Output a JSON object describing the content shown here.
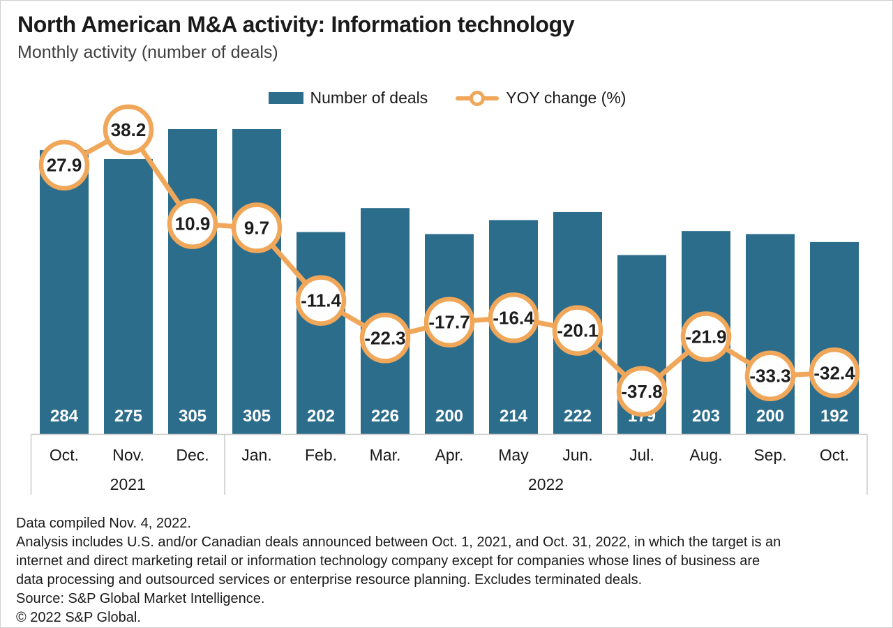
{
  "chart_data": {
    "type": "bar",
    "title": "North American M&A activity: Information technology",
    "subtitle": "Monthly activity (number of deals)",
    "categories": [
      "Oct.",
      "Nov.",
      "Dec.",
      "Jan.",
      "Feb.",
      "Mar.",
      "Apr.",
      "May",
      "Jun.",
      "Jul.",
      "Aug.",
      "Sep.",
      "Oct."
    ],
    "year_groups": [
      {
        "label": "2021",
        "months": 3
      },
      {
        "label": "2022",
        "months": 10
      }
    ],
    "series": [
      {
        "name": "Number of deals",
        "type": "bar",
        "color": "#2d6d8c",
        "values": [
          284,
          275,
          305,
          305,
          202,
          226,
          200,
          214,
          222,
          179,
          203,
          200,
          192
        ]
      },
      {
        "name": "YOY change (%)",
        "type": "line",
        "color": "#f0a75a",
        "marker": "circle",
        "values": [
          27.9,
          38.2,
          10.9,
          9.7,
          -11.4,
          -22.3,
          -17.7,
          -16.4,
          -20.1,
          -37.8,
          -21.9,
          -33.3,
          -32.4
        ]
      }
    ],
    "ylim": [
      0,
      305
    ],
    "grid": false,
    "legend_position": "top-center",
    "bar_value_label_color": "#ffffff",
    "marker_value_label_color": "#1d1d1d",
    "axis_color": "#c8c8c8"
  },
  "footnotes": [
    "Data compiled Nov. 4, 2022.",
    "Analysis includes U.S. and/or Canadian deals announced between Oct. 1, 2021, and Oct. 31, 2022, in which the target is an",
    "internet and direct marketing retail or information technology company except for companies whose lines of business are",
    "data processing and outsourced services or enterprise resource planning. Excludes terminated deals.",
    "Source: S&P Global Market Intelligence.",
    "© 2022 S&P Global."
  ]
}
